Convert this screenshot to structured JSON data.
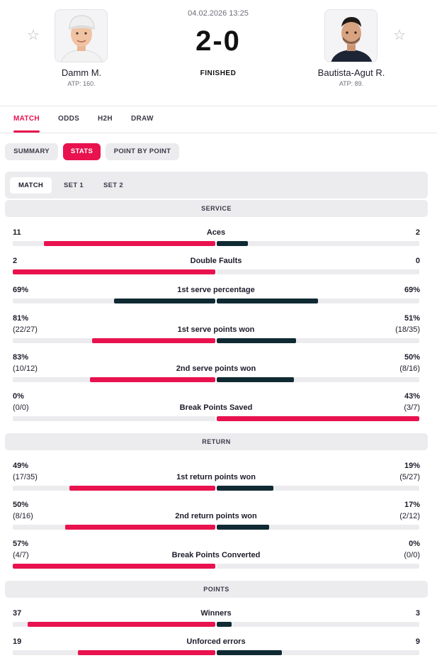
{
  "match": {
    "datetime": "04.02.2026 13:25",
    "score": "2-0",
    "status": "FINISHED"
  },
  "home": {
    "name": "Damm M.",
    "rank": "ATP: 160."
  },
  "away": {
    "name": "Bautista-Agut R.",
    "rank": "ATP: 89."
  },
  "main_tabs": [
    "MATCH",
    "ODDS",
    "H2H",
    "DRAW"
  ],
  "sub_tabs": [
    "SUMMARY",
    "STATS",
    "POINT BY POINT"
  ],
  "period_tabs": [
    "MATCH",
    "SET 1",
    "SET 2"
  ],
  "colors": {
    "accent": "#e8124f",
    "dark": "#0f2a33",
    "track": "#ececef"
  },
  "sections": [
    {
      "title": "SERVICE",
      "stats": [
        {
          "label": "Aces",
          "home": "11",
          "away": "2",
          "home_sub": "",
          "away_sub": "",
          "home_fill": 0.846,
          "away_fill": 0.154,
          "home_color": "accent",
          "away_color": "dark"
        },
        {
          "label": "Double Faults",
          "home": "2",
          "away": "0",
          "home_sub": "",
          "away_sub": "",
          "home_fill": 1.0,
          "away_fill": 0.0,
          "home_color": "accent",
          "away_color": "dark"
        },
        {
          "label": "1st serve percentage",
          "home": "69%",
          "away": "69%",
          "home_sub": "",
          "away_sub": "",
          "home_fill": 0.5,
          "away_fill": 0.5,
          "home_color": "dark",
          "away_color": "dark"
        },
        {
          "label": "1st serve points won",
          "home": "81%",
          "away": "51%",
          "home_sub": "(22/27)",
          "away_sub": "(18/35)",
          "home_fill": 0.61,
          "away_fill": 0.39,
          "home_color": "accent",
          "away_color": "dark"
        },
        {
          "label": "2nd serve points won",
          "home": "83%",
          "away": "50%",
          "home_sub": "(10/12)",
          "away_sub": "(8/16)",
          "home_fill": 0.62,
          "away_fill": 0.38,
          "home_color": "accent",
          "away_color": "dark"
        },
        {
          "label": "Break Points Saved",
          "home": "0%",
          "away": "43%",
          "home_sub": "(0/0)",
          "away_sub": "(3/7)",
          "home_fill": 0.0,
          "away_fill": 1.0,
          "home_color": "dark",
          "away_color": "accent"
        }
      ]
    },
    {
      "title": "RETURN",
      "stats": [
        {
          "label": "1st return points won",
          "home": "49%",
          "away": "19%",
          "home_sub": "(17/35)",
          "away_sub": "(5/27)",
          "home_fill": 0.72,
          "away_fill": 0.28,
          "home_color": "accent",
          "away_color": "dark"
        },
        {
          "label": "2nd return points won",
          "home": "50%",
          "away": "17%",
          "home_sub": "(8/16)",
          "away_sub": "(2/12)",
          "home_fill": 0.74,
          "away_fill": 0.26,
          "home_color": "accent",
          "away_color": "dark"
        },
        {
          "label": "Break Points Converted",
          "home": "57%",
          "away": "0%",
          "home_sub": "(4/7)",
          "away_sub": "(0/0)",
          "home_fill": 1.0,
          "away_fill": 0.0,
          "home_color": "accent",
          "away_color": "dark"
        }
      ]
    },
    {
      "title": "POINTS",
      "stats": [
        {
          "label": "Winners",
          "home": "37",
          "away": "3",
          "home_sub": "",
          "away_sub": "",
          "home_fill": 0.925,
          "away_fill": 0.075,
          "home_color": "accent",
          "away_color": "dark"
        },
        {
          "label": "Unforced errors",
          "home": "19",
          "away": "9",
          "home_sub": "",
          "away_sub": "",
          "home_fill": 0.68,
          "away_fill": 0.32,
          "home_color": "accent",
          "away_color": "dark"
        }
      ]
    }
  ]
}
